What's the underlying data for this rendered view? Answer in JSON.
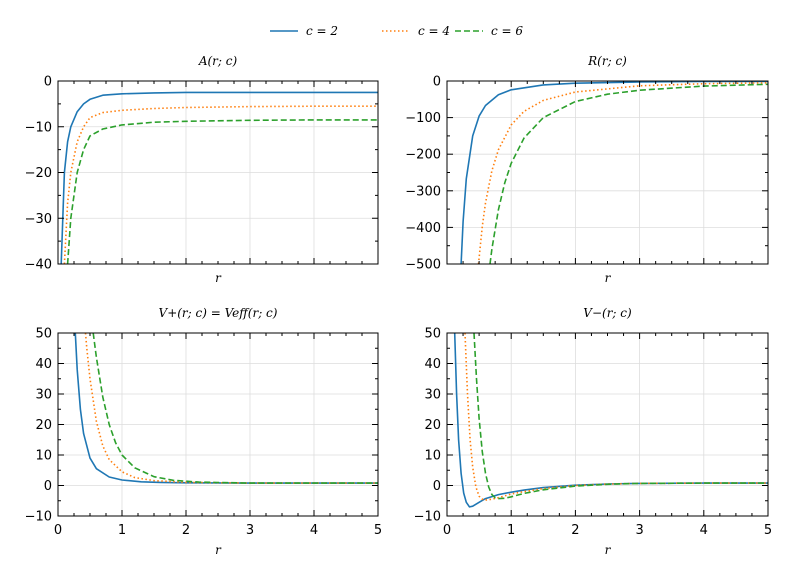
{
  "legend": {
    "position": "top-center",
    "entries": [
      {
        "label": "c = 2",
        "color": "#1f77b4",
        "dash": "solid"
      },
      {
        "label": "c = 4",
        "color": "#ff7f0e",
        "dash": "dotted"
      },
      {
        "label": "c = 6",
        "color": "#2ca02c",
        "dash": "dashed"
      }
    ]
  },
  "chart_data": [
    {
      "type": "line",
      "title": "A(r; c)",
      "xlabel": "r",
      "ylabel": "",
      "xlim": [
        0,
        5
      ],
      "ylim": [
        -40,
        0
      ],
      "xticks": [
        0,
        1,
        2,
        3,
        4,
        5
      ],
      "yticks": [
        -40,
        -30,
        -20,
        -10,
        0
      ],
      "show_x_tick_labels": false,
      "grid": true,
      "series": [
        {
          "name": "c = 2",
          "x": [
            0.05,
            0.1,
            0.15,
            0.2,
            0.3,
            0.4,
            0.5,
            0.7,
            1.0,
            1.5,
            2.0,
            3.0,
            4.0,
            5.0
          ],
          "y": [
            -40,
            -20,
            -13.3,
            -10.0,
            -6.7,
            -5.0,
            -4.0,
            -3.1,
            -2.8,
            -2.6,
            -2.5,
            -2.5,
            -2.5,
            -2.5
          ]
        },
        {
          "name": "c = 4",
          "x": [
            0.1,
            0.15,
            0.2,
            0.3,
            0.4,
            0.5,
            0.7,
            1.0,
            1.5,
            2.0,
            3.0,
            4.0,
            5.0
          ],
          "y": [
            -40,
            -26.7,
            -20,
            -13.3,
            -10.0,
            -8.0,
            -6.9,
            -6.4,
            -6.0,
            -5.8,
            -5.6,
            -5.5,
            -5.5
          ]
        },
        {
          "name": "c = 6",
          "x": [
            0.15,
            0.2,
            0.3,
            0.4,
            0.5,
            0.7,
            1.0,
            1.5,
            2.0,
            3.0,
            4.0,
            5.0
          ],
          "y": [
            -40,
            -30,
            -20,
            -15,
            -12,
            -10.5,
            -9.6,
            -9.0,
            -8.8,
            -8.6,
            -8.5,
            -8.5
          ]
        }
      ]
    },
    {
      "type": "line",
      "title": "R(r; c)",
      "xlabel": "r",
      "ylabel": "",
      "xlim": [
        0,
        5
      ],
      "ylim": [
        -500,
        0
      ],
      "xticks": [
        0,
        1,
        2,
        3,
        4,
        5
      ],
      "yticks": [
        -500,
        -400,
        -300,
        -200,
        -100,
        0
      ],
      "show_x_tick_labels": false,
      "grid": true,
      "series": [
        {
          "name": "c = 2",
          "x": [
            0.22,
            0.25,
            0.3,
            0.4,
            0.5,
            0.6,
            0.8,
            1.0,
            1.5,
            2.0,
            3.0,
            4.0,
            5.0
          ],
          "y": [
            -500,
            -384,
            -267,
            -150,
            -96,
            -67,
            -37.5,
            -24,
            -10.7,
            -6,
            -2.7,
            -1.5,
            -1.0
          ]
        },
        {
          "name": "c = 4",
          "x": [
            0.49,
            0.55,
            0.6,
            0.7,
            0.8,
            1.0,
            1.2,
            1.5,
            2.0,
            3.0,
            4.0,
            5.0
          ],
          "y": [
            -500,
            -397,
            -333,
            -245,
            -188,
            -120,
            -83,
            -53,
            -30,
            -13,
            -7.5,
            -4.8
          ]
        },
        {
          "name": "c = 6",
          "x": [
            0.67,
            0.7,
            0.8,
            0.9,
            1.0,
            1.2,
            1.5,
            2.0,
            2.5,
            3.0,
            4.0,
            5.0
          ],
          "y": [
            -500,
            -459,
            -352,
            -278,
            -225,
            -156,
            -100,
            -56,
            -36,
            -25,
            -14,
            -9
          ]
        }
      ]
    },
    {
      "type": "line",
      "title": "V+(r; c) = Veff(r; c)",
      "xlabel": "r",
      "ylabel": "",
      "xlim": [
        0,
        5
      ],
      "ylim": [
        -10,
        50
      ],
      "xticks": [
        0,
        1,
        2,
        3,
        4,
        5
      ],
      "yticks": [
        -10,
        0,
        10,
        20,
        30,
        40,
        50
      ],
      "show_x_tick_labels": true,
      "grid": true,
      "series": [
        {
          "name": "c = 2",
          "x": [
            0.27,
            0.3,
            0.35,
            0.4,
            0.5,
            0.6,
            0.8,
            1.0,
            1.3,
            1.6,
            2.0,
            3.0,
            4.0,
            5.0
          ],
          "y": [
            50,
            38,
            25,
            17,
            9,
            5.5,
            2.8,
            1.8,
            1.2,
            1.0,
            0.9,
            0.8,
            0.8,
            0.8
          ]
        },
        {
          "name": "c = 4",
          "x": [
            0.43,
            0.45,
            0.5,
            0.6,
            0.7,
            0.8,
            1.0,
            1.2,
            1.5,
            2.0,
            3.0,
            4.0,
            5.0
          ],
          "y": [
            50,
            45,
            35,
            21,
            13,
            8.5,
            4.5,
            2.6,
            1.6,
            1.0,
            0.8,
            0.8,
            0.8
          ]
        },
        {
          "name": "c = 6",
          "x": [
            0.55,
            0.6,
            0.7,
            0.8,
            0.9,
            1.0,
            1.2,
            1.5,
            1.8,
            2.2,
            3.0,
            4.0,
            5.0
          ],
          "y": [
            50,
            42,
            29,
            20,
            14,
            10,
            5.8,
            2.9,
            1.7,
            1.1,
            0.8,
            0.8,
            0.8
          ]
        }
      ]
    },
    {
      "type": "line",
      "title": "V−(r; c)",
      "xlabel": "r",
      "ylabel": "",
      "xlim": [
        0,
        5
      ],
      "ylim": [
        -10,
        50
      ],
      "xticks": [
        0,
        1,
        2,
        3,
        4,
        5
      ],
      "yticks": [
        -10,
        0,
        10,
        20,
        30,
        40,
        50
      ],
      "show_x_tick_labels": true,
      "grid": true,
      "series": [
        {
          "name": "c = 2",
          "x": [
            0.12,
            0.15,
            0.18,
            0.22,
            0.26,
            0.3,
            0.35,
            0.4,
            0.5,
            0.6,
            0.8,
            1.0,
            1.2,
            1.5,
            2.0,
            2.5,
            3.0,
            4.0,
            5.0
          ],
          "y": [
            50,
            30,
            15,
            4,
            -2.5,
            -5.5,
            -7.0,
            -6.8,
            -5.5,
            -4.3,
            -3.0,
            -2.2,
            -1.5,
            -0.7,
            0.1,
            0.5,
            0.7,
            0.8,
            0.8
          ]
        },
        {
          "name": "c = 4",
          "x": [
            0.28,
            0.32,
            0.36,
            0.4,
            0.45,
            0.5,
            0.55,
            0.6,
            0.7,
            0.8,
            1.0,
            1.2,
            1.5,
            2.0,
            2.5,
            3.0,
            4.0,
            5.0
          ],
          "y": [
            50,
            30,
            15,
            6,
            -0.5,
            -3.5,
            -4.5,
            -4.8,
            -4.5,
            -4.0,
            -2.8,
            -2.0,
            -1.0,
            0.0,
            0.5,
            0.7,
            0.8,
            0.8
          ]
        },
        {
          "name": "c = 6",
          "x": [
            0.42,
            0.46,
            0.5,
            0.55,
            0.6,
            0.65,
            0.7,
            0.75,
            0.8,
            0.9,
            1.0,
            1.2,
            1.5,
            2.0,
            2.5,
            3.0,
            4.0,
            5.0
          ],
          "y": [
            50,
            35,
            22,
            11,
            4,
            -0.5,
            -3.0,
            -4.0,
            -4.3,
            -4.2,
            -3.7,
            -2.6,
            -1.4,
            -0.2,
            0.4,
            0.7,
            0.8,
            0.8
          ]
        }
      ]
    }
  ]
}
